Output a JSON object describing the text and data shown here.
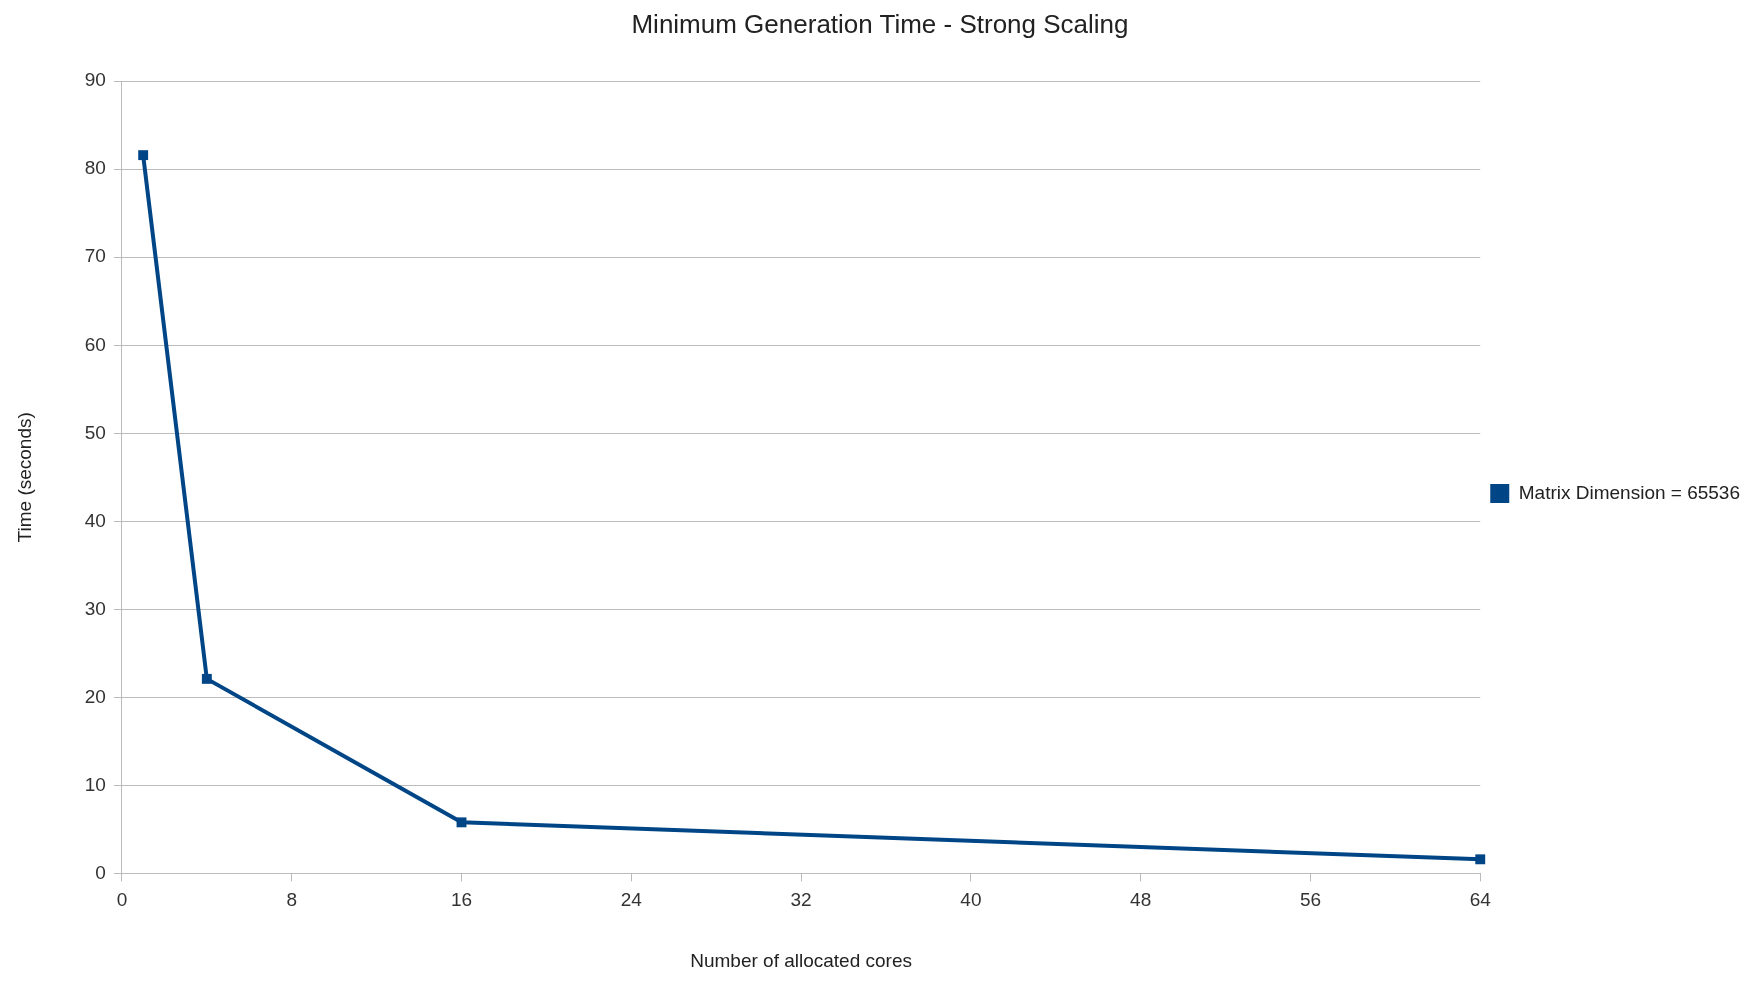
{
  "chart_data": {
    "type": "line",
    "title": "Minimum Generation Time - Strong Scaling",
    "xlabel": "Number of allocated cores",
    "ylabel": "Time (seconds)",
    "x": [
      1,
      4,
      16,
      64
    ],
    "series": [
      {
        "name": "Matrix Dimension = 65536",
        "color": "#004586",
        "values": [
          81.6,
          22.1,
          5.8,
          1.6
        ]
      }
    ],
    "xlim": [
      0,
      64
    ],
    "xticks": [
      0,
      8,
      16,
      24,
      32,
      40,
      48,
      56,
      64
    ],
    "ylim": [
      0,
      90
    ],
    "yticks": [
      0,
      10,
      20,
      30,
      40,
      50,
      60,
      70,
      80,
      90
    ],
    "grid": "y",
    "legend": "right",
    "marker": "square",
    "line_style": "solid"
  }
}
